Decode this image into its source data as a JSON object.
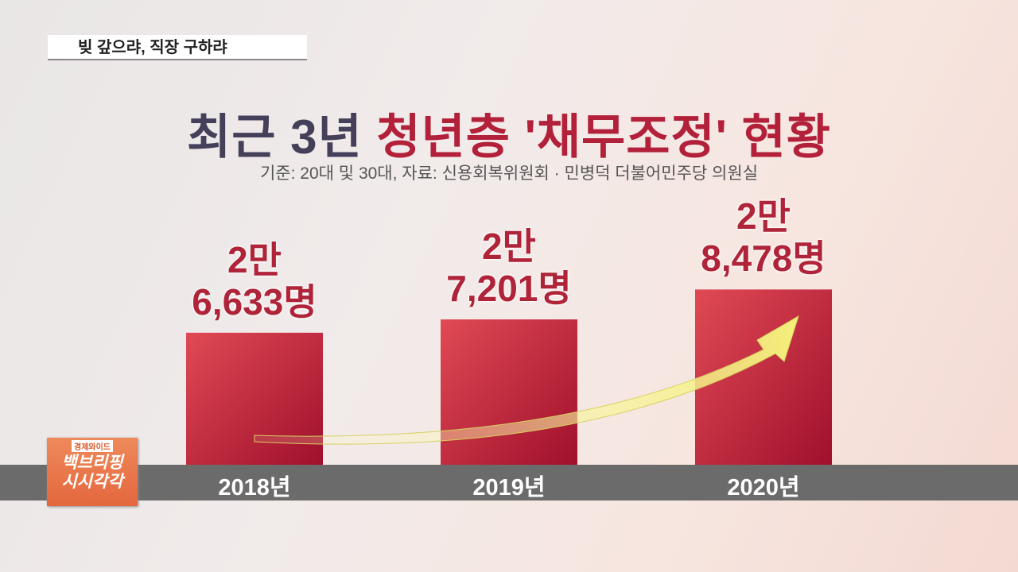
{
  "program_tag": "빚 갚으랴, 직장 구하랴",
  "logo": {
    "top": "경제와이드",
    "line1": "백브리핑",
    "line2": "시시각각"
  },
  "chart_data": {
    "type": "bar",
    "title": {
      "lead": "최근 3년",
      "highlight": "청년층 '채무조정' 현황"
    },
    "subtitle": "기준: 20대 및 30대, 자료: 신용회복위원회 · 민병덕 더불어민주당 의원실",
    "categories": [
      "2018년",
      "2019년",
      "2020년"
    ],
    "values": [
      26633,
      27201,
      28478
    ],
    "value_labels": [
      "2만\n6,633명",
      "2만\n7,201명",
      "2만\n8,478명"
    ],
    "color": "#c8243a",
    "ylim": [
      21000,
      29000
    ]
  }
}
